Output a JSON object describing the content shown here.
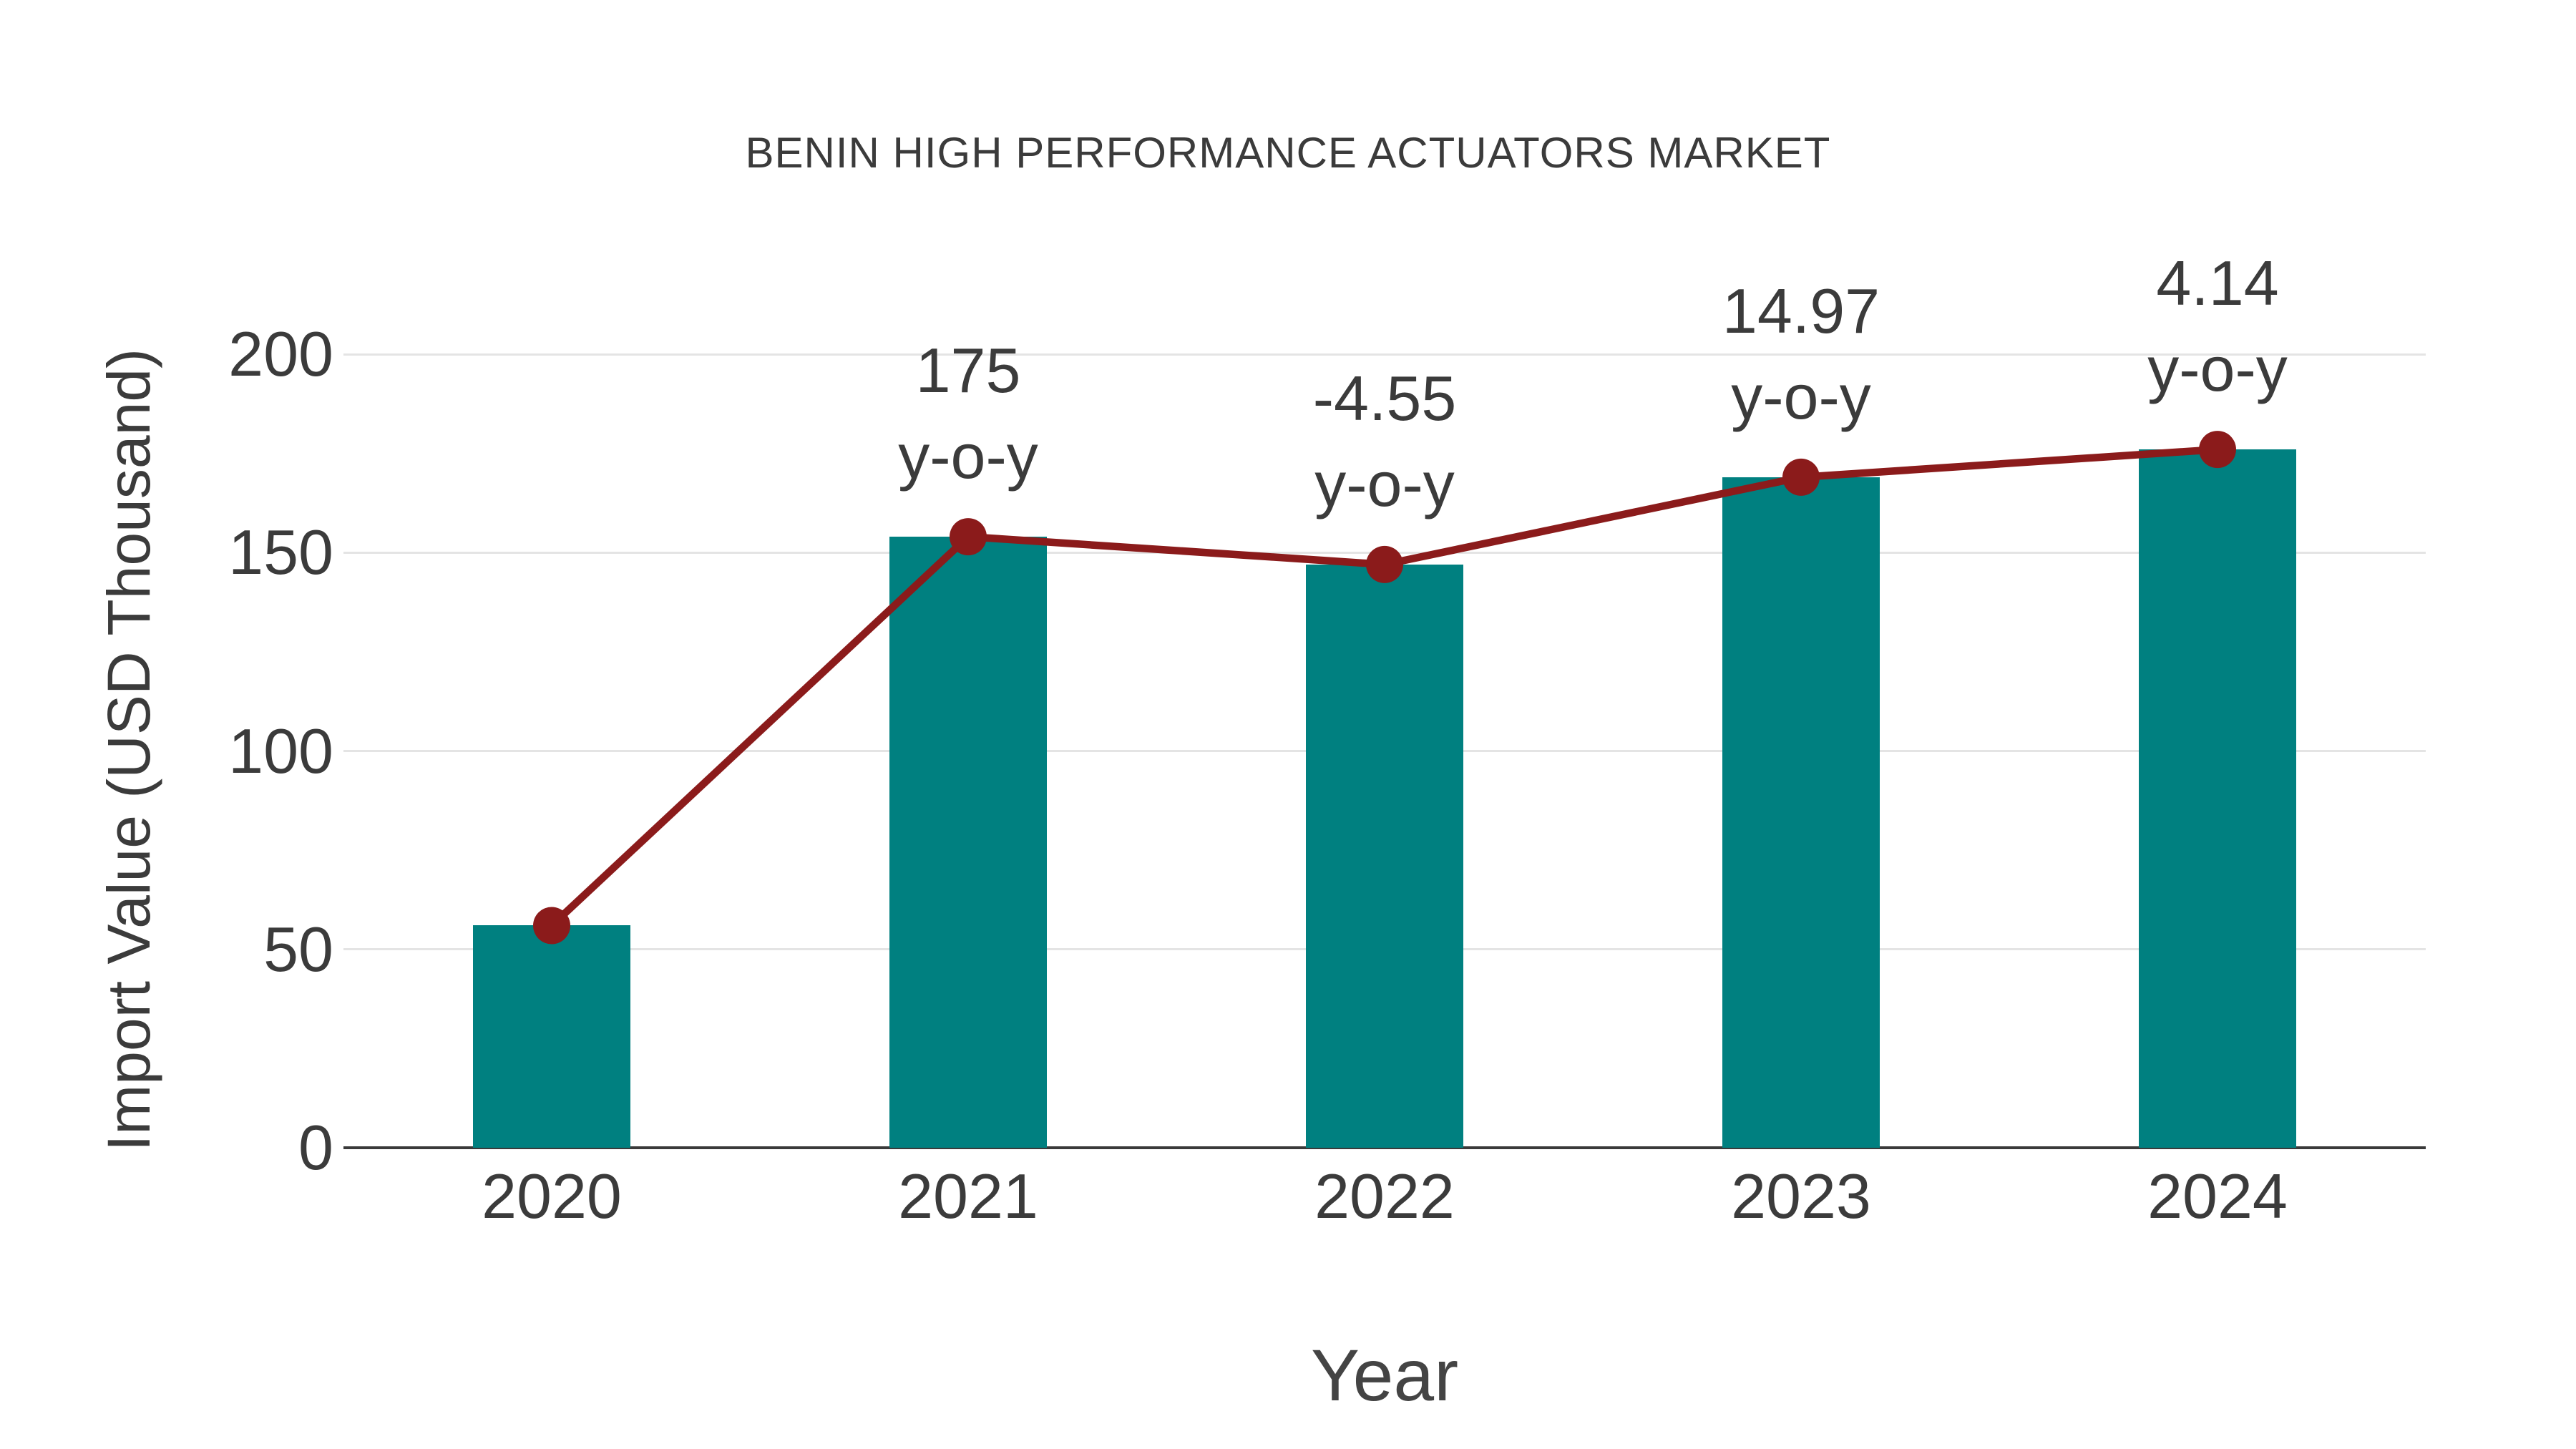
{
  "chart_data": {
    "type": "bar",
    "title": "BENIN HIGH PERFORMANCE ACTUATORS MARKET",
    "xlabel": "Year",
    "ylabel": "Import Value (USD Thousand)",
    "categories": [
      "2020",
      "2021",
      "2022",
      "2023",
      "2024"
    ],
    "series": [
      {
        "name": "import-value-bars",
        "type": "bar",
        "values": [
          56,
          154,
          147,
          169,
          176
        ],
        "color": "#008080"
      },
      {
        "name": "import-value-trend-line",
        "type": "line",
        "values": [
          56,
          154,
          147,
          169,
          176
        ],
        "color": "#8B1B1B"
      }
    ],
    "annotations": [
      {
        "category": "2021",
        "lines": [
          "175",
          "y-o-y"
        ]
      },
      {
        "category": "2022",
        "lines": [
          "-4.55",
          "y-o-y"
        ]
      },
      {
        "category": "2023",
        "lines": [
          "14.97",
          "y-o-y"
        ]
      },
      {
        "category": "2024",
        "lines": [
          "4.14",
          "y-o-y"
        ]
      }
    ],
    "yticks": [
      0,
      50,
      100,
      150,
      200
    ],
    "ylim": [
      0,
      213.5
    ],
    "grid": true,
    "legend_position": "none",
    "colors": {
      "bar": "#008080",
      "line": "#8B1B1B",
      "marker": "#8B1B1B",
      "text": "#3b3b3b",
      "gridline": "#e4e4e4",
      "axis_line": "#3a3a3a",
      "background": "#ffffff"
    }
  }
}
